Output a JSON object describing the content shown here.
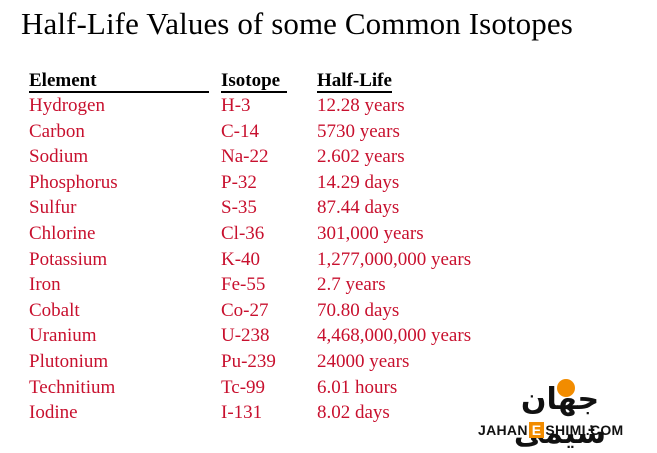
{
  "title": "Half-Life Values of some Common Isotopes",
  "table": {
    "headers": [
      "Element",
      "Isotope",
      "Half-Life"
    ],
    "rows": [
      [
        "Hydrogen",
        "H-3",
        "12.28 years"
      ],
      [
        "Carbon",
        "C-14",
        "5730 years"
      ],
      [
        "Sodium",
        "Na-22",
        "2.602 years"
      ],
      [
        "Phosphorus",
        "P-32",
        "14.29 days"
      ],
      [
        "Sulfur",
        "S-35",
        "87.44 days"
      ],
      [
        "Chlorine",
        "Cl-36",
        "301,000 years"
      ],
      [
        "Potassium",
        "K-40",
        "1,277,000,000  years"
      ],
      [
        "Iron",
        "Fe-55",
        "2.7 years"
      ],
      [
        "Cobalt",
        "Co-27",
        "70.80 days"
      ],
      [
        "Uranium",
        "U-238",
        "4,468,000,000 years"
      ],
      [
        "Plutonium",
        "Pu-239",
        "24000 years"
      ],
      [
        "Technitium",
        "Tc-99",
        "6.01 hours"
      ],
      [
        "Iodine",
        "I-131",
        "8.02 days"
      ]
    ]
  },
  "watermark": {
    "logo_text": "JAHANESHIMI.COM",
    "logo_text_pre": "JAHAN",
    "logo_text_e": "E",
    "logo_text_post": "SHIMI.COM",
    "logo_mark": "جهان شیمی"
  },
  "colors": {
    "data_text": "#c8102e",
    "header_text": "#000000",
    "accent": "#f28c00"
  }
}
